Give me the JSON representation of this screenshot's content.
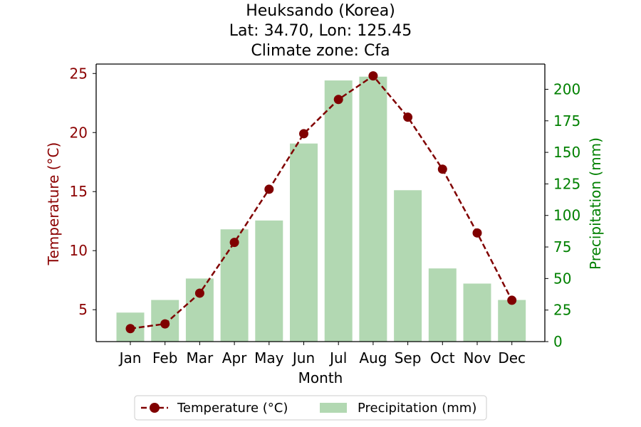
{
  "chart_data": {
    "type": "bar+line",
    "title_lines": [
      "Heuksando (Korea)",
      "Lat: 34.70, Lon: 125.45",
      "Climate zone: Cfa"
    ],
    "xlabel": "Month",
    "ylabel_left": "Temperature (°C)",
    "ylabel_right": "Precipitation (mm)",
    "categories": [
      "Jan",
      "Feb",
      "Mar",
      "Apr",
      "May",
      "Jun",
      "Jul",
      "Aug",
      "Sep",
      "Oct",
      "Nov",
      "Dec"
    ],
    "temperature": {
      "name": "Temperature (°C)",
      "values": [
        3.4,
        3.8,
        6.4,
        10.7,
        15.2,
        19.9,
        22.8,
        24.8,
        21.3,
        16.9,
        11.5,
        5.8
      ]
    },
    "precipitation": {
      "name": "Precipitation (mm)",
      "values": [
        23,
        33,
        50,
        89,
        96,
        157,
        207,
        210,
        120,
        58,
        46,
        33
      ]
    },
    "ylim_left": [
      2.3,
      25.8
    ],
    "ylim_right": [
      0,
      220
    ],
    "yticks_left": [
      5,
      10,
      15,
      20,
      25
    ],
    "yticks_right": [
      0,
      25,
      50,
      75,
      100,
      125,
      150,
      175,
      200
    ],
    "legend_position": "bottom-center",
    "colors": {
      "temperature": "#800000",
      "precipitation": "#b2d8b2",
      "left_axis": "#8b0000",
      "right_axis": "#008000"
    }
  }
}
